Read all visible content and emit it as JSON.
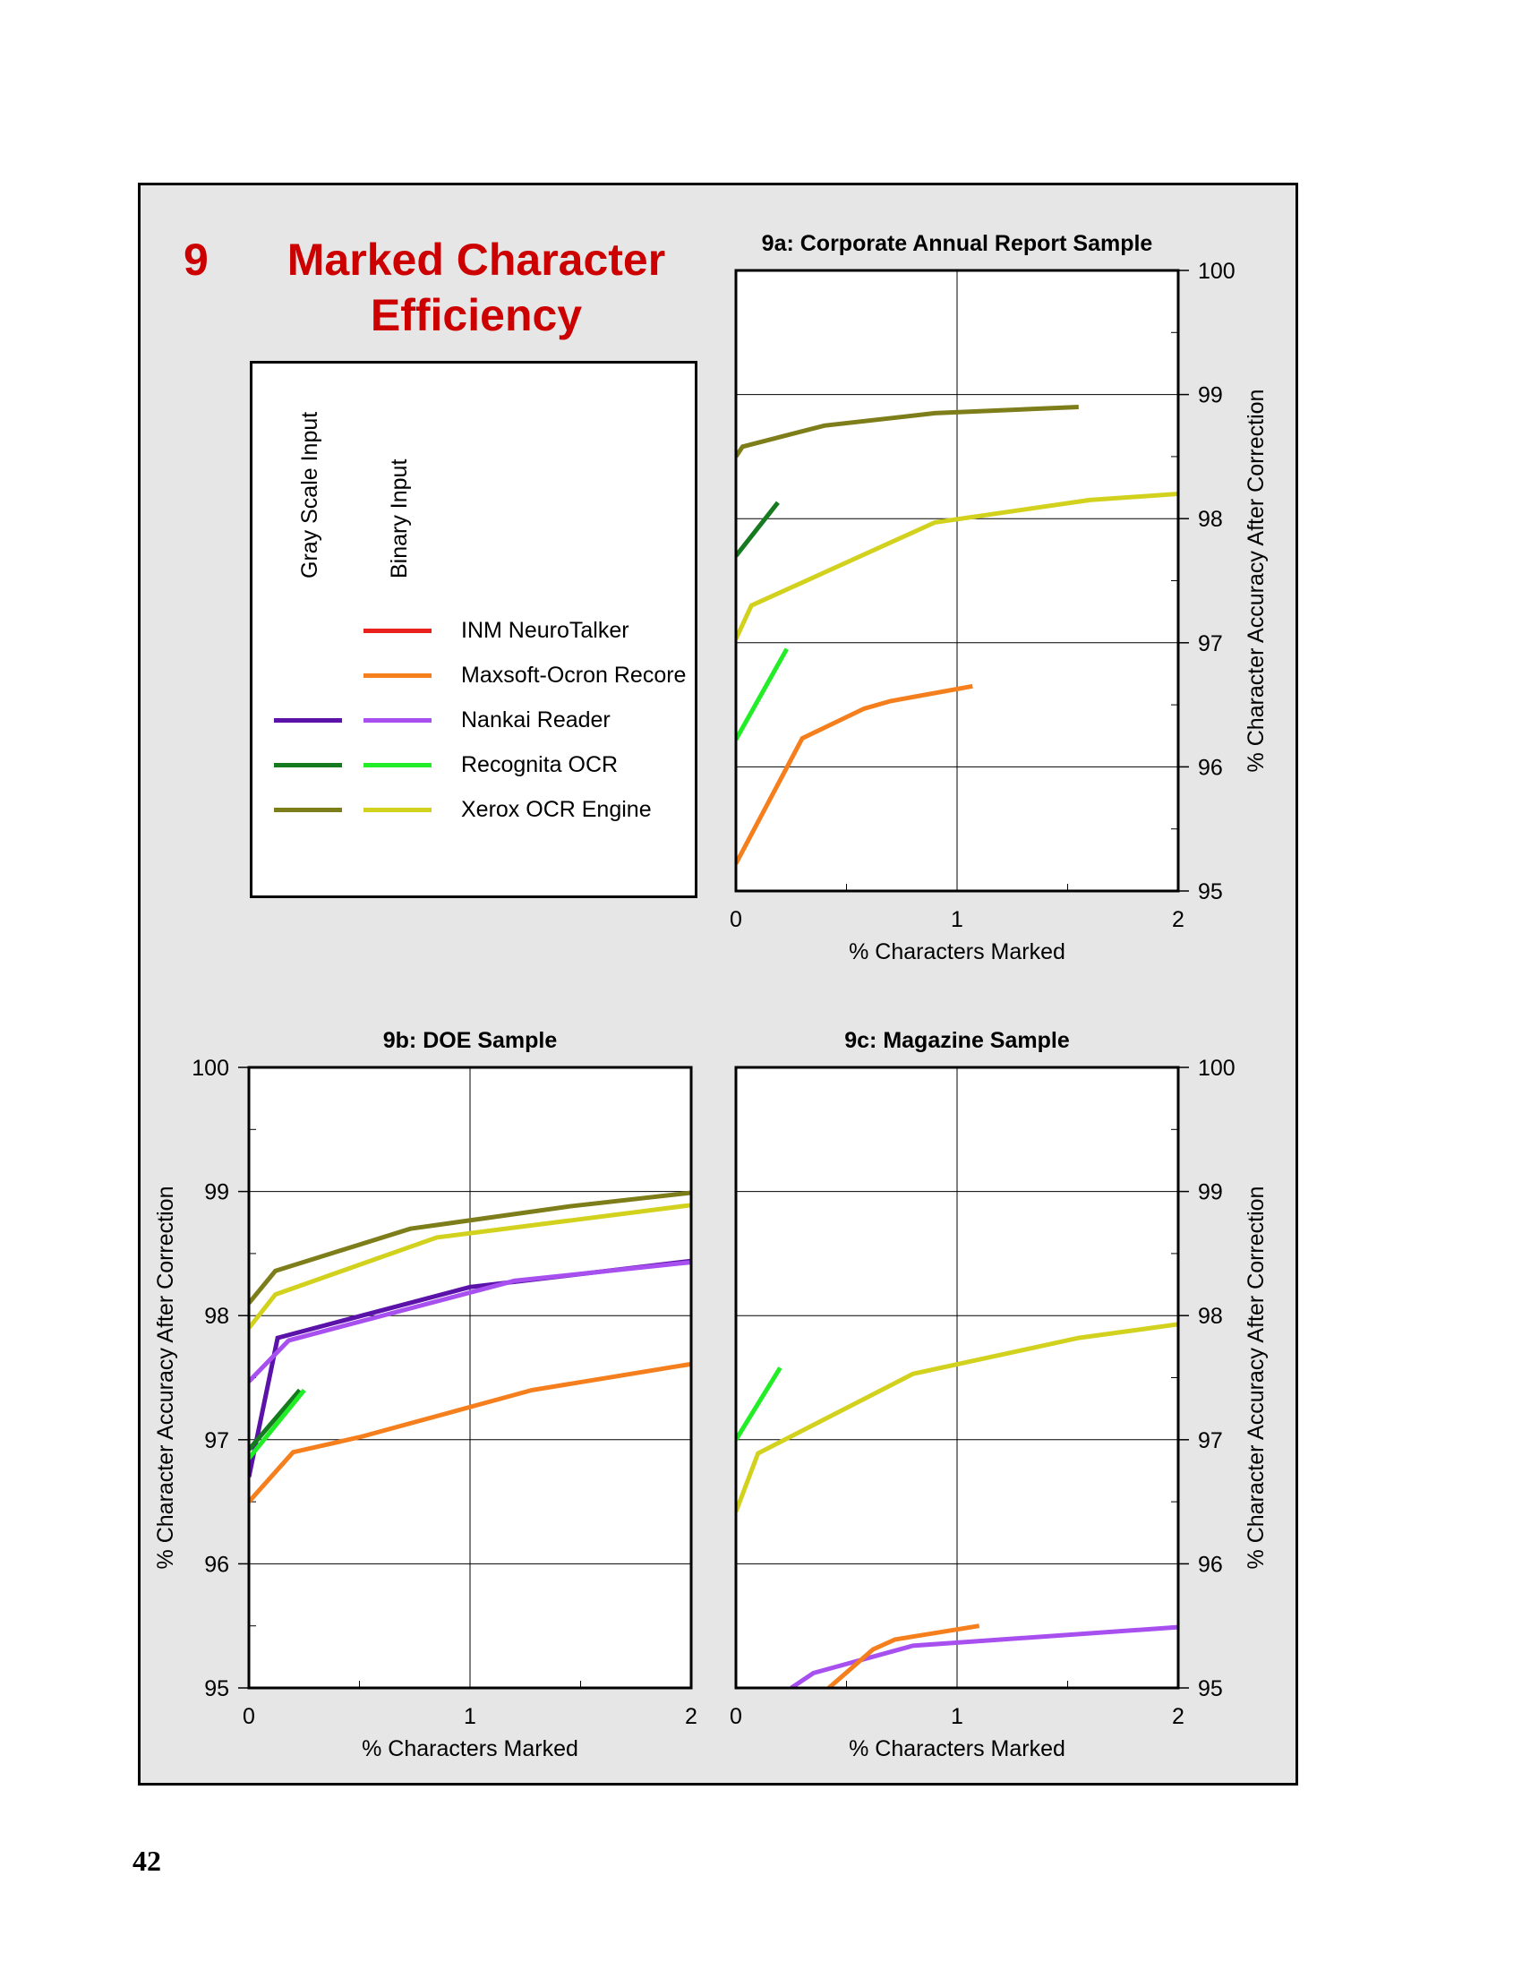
{
  "figure": {
    "number": "9",
    "title": "Marked Character Efficiency"
  },
  "page_number": "42",
  "legend": {
    "column_labels": [
      "Gray Scale Input",
      "Binary Input"
    ],
    "entries": [
      {
        "label": "INM NeuroTalker",
        "gray_color": null,
        "binary_color": "#e8211d"
      },
      {
        "label": "Maxsoft-Ocron Recore",
        "gray_color": null,
        "binary_color": "#f57e1d"
      },
      {
        "label": "Nankai Reader",
        "gray_color": "#5a12a8",
        "binary_color": "#a84ff0"
      },
      {
        "label": "Recognita OCR",
        "gray_color": "#167a1e",
        "binary_color": "#22ee28"
      },
      {
        "label": "Xerox OCR Engine",
        "gray_color": "#7d7d1a",
        "binary_color": "#d2d21e"
      }
    ]
  },
  "chart_data": [
    {
      "id": "9a",
      "type": "line",
      "title": "9a:  Corporate Annual Report Sample",
      "xlabel": "% Characters Marked",
      "ylabel": "% Character Accuracy After Correction",
      "xlim": [
        0,
        2
      ],
      "ylim": [
        95,
        100
      ],
      "xticks": [
        "0",
        "1",
        "2"
      ],
      "yticks": [
        "95",
        "96",
        "97",
        "98",
        "99",
        "100"
      ],
      "y_axis_side": "right",
      "grid": true,
      "series": [
        {
          "name": "Xerox OCR Engine",
          "input": "gray",
          "color": "#7d7d1a",
          "x": [
            0,
            0.03,
            0.4,
            0.9,
            1.55
          ],
          "y": [
            98.5,
            98.58,
            98.75,
            98.85,
            98.9
          ]
        },
        {
          "name": "Recognita OCR",
          "input": "gray",
          "color": "#167a1e",
          "x": [
            0,
            0.19
          ],
          "y": [
            97.7,
            98.13
          ]
        },
        {
          "name": "Xerox OCR Engine",
          "input": "binary",
          "color": "#d2d21e",
          "x": [
            0,
            0.07,
            0.9,
            1.6,
            2.0
          ],
          "y": [
            97.03,
            97.3,
            97.97,
            98.15,
            98.2
          ]
        },
        {
          "name": "Recognita OCR",
          "input": "binary",
          "color": "#22ee28",
          "x": [
            0,
            0.23
          ],
          "y": [
            96.22,
            96.95
          ]
        },
        {
          "name": "Maxsoft-Ocron Recore",
          "input": "binary",
          "color": "#f57e1d",
          "x": [
            0,
            0.3,
            0.58,
            0.7,
            1.07
          ],
          "y": [
            95.22,
            96.23,
            96.47,
            96.53,
            96.65
          ]
        }
      ]
    },
    {
      "id": "9b",
      "type": "line",
      "title": "9b:  DOE Sample",
      "xlabel": "% Characters Marked",
      "ylabel": "% Character Accuracy After Correction",
      "xlim": [
        0,
        2
      ],
      "ylim": [
        95,
        100
      ],
      "xticks": [
        "0",
        "1",
        "2"
      ],
      "yticks": [
        "95",
        "96",
        "97",
        "98",
        "99",
        "100"
      ],
      "y_axis_side": "left",
      "grid": true,
      "series": [
        {
          "name": "Xerox OCR Engine",
          "input": "gray",
          "color": "#7d7d1a",
          "x": [
            0,
            0.12,
            0.73,
            1.45,
            2.0
          ],
          "y": [
            98.1,
            98.36,
            98.7,
            98.88,
            98.99
          ]
        },
        {
          "name": "Xerox OCR Engine",
          "input": "binary",
          "color": "#d2d21e",
          "x": [
            0,
            0.12,
            0.85,
            2.0
          ],
          "y": [
            97.9,
            98.17,
            98.63,
            98.89
          ]
        },
        {
          "name": "Nankai Reader",
          "input": "gray",
          "color": "#5a12a8",
          "x": [
            0,
            0.13,
            1.0,
            2.0
          ],
          "y": [
            96.7,
            97.82,
            98.23,
            98.44
          ]
        },
        {
          "name": "Nankai Reader",
          "input": "binary",
          "color": "#a84ff0",
          "x": [
            0,
            0.18,
            1.2,
            2.0
          ],
          "y": [
            97.47,
            97.8,
            98.28,
            98.43
          ]
        },
        {
          "name": "Recognita OCR",
          "input": "gray",
          "color": "#167a1e",
          "x": [
            0,
            0.23
          ],
          "y": [
            96.92,
            97.4
          ]
        },
        {
          "name": "Recognita OCR",
          "input": "binary",
          "color": "#22ee28",
          "x": [
            0,
            0.25
          ],
          "y": [
            96.85,
            97.4
          ]
        },
        {
          "name": "Maxsoft-Ocron Recore",
          "input": "binary",
          "color": "#f57e1d",
          "x": [
            0,
            0.2,
            0.5,
            1.28,
            2.0
          ],
          "y": [
            96.5,
            96.9,
            97.02,
            97.4,
            97.61
          ]
        }
      ]
    },
    {
      "id": "9c",
      "type": "line",
      "title": "9c:  Magazine Sample",
      "xlabel": "% Characters Marked",
      "ylabel": "% Character Accuracy After Correction",
      "xlim": [
        0,
        2
      ],
      "ylim": [
        95,
        100
      ],
      "xticks": [
        "0",
        "1",
        "2"
      ],
      "yticks": [
        "95",
        "96",
        "97",
        "98",
        "99",
        "100"
      ],
      "y_axis_side": "right",
      "grid": true,
      "series": [
        {
          "name": "Recognita OCR",
          "input": "binary",
          "color": "#22ee28",
          "x": [
            0,
            0.2
          ],
          "y": [
            97.0,
            97.58
          ]
        },
        {
          "name": "Xerox OCR Engine",
          "input": "binary",
          "color": "#d2d21e",
          "x": [
            0,
            0.1,
            0.8,
            1.55,
            2.0
          ],
          "y": [
            96.42,
            96.89,
            97.53,
            97.82,
            97.93
          ]
        },
        {
          "name": "Nankai Reader",
          "input": "binary",
          "color": "#a84ff0",
          "x": [
            0.25,
            0.35,
            0.8,
            2.0
          ],
          "y": [
            95.0,
            95.12,
            95.34,
            95.49
          ]
        },
        {
          "name": "Maxsoft-Ocron Recore",
          "input": "binary",
          "color": "#f57e1d",
          "x": [
            0.42,
            0.62,
            0.72,
            1.1
          ],
          "y": [
            95.0,
            95.31,
            95.39,
            95.5
          ]
        }
      ]
    }
  ]
}
